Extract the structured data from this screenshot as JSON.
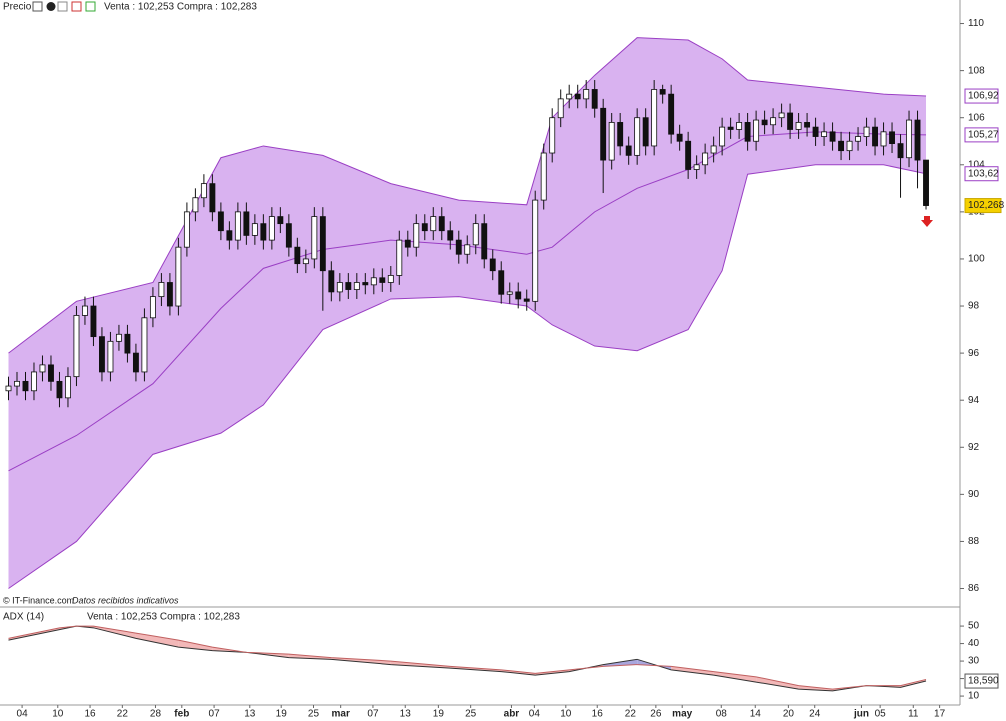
{
  "header": {
    "title": "Precio",
    "quote": "Venta : 102,253 Compra : 102,283"
  },
  "footer": {
    "source": "© IT-Finance.com",
    "note": "Datos recibidos indicativos"
  },
  "chart_data": [
    {
      "type": "candlestick",
      "xlim": [
        -1,
        112
      ],
      "ylim": [
        85.3,
        111
      ],
      "yticks": [
        86,
        88,
        90,
        92,
        94,
        96,
        98,
        100,
        102,
        104,
        106,
        108,
        110
      ],
      "up_color": "#ffffff",
      "down_color": "#111111",
      "open": [
        94.4,
        94.6,
        94.8,
        94.4,
        95.2,
        95.5,
        94.8,
        94.1,
        95.0,
        97.6,
        98.0,
        96.7,
        95.2,
        96.5,
        96.8,
        96.0,
        95.2,
        97.5,
        98.4,
        99.0,
        98.0,
        100.5,
        102.0,
        102.6,
        103.2,
        102.0,
        101.2,
        100.8,
        102.0,
        101.0,
        101.5,
        100.8,
        101.8,
        101.5,
        100.5,
        99.8,
        100.0,
        101.8,
        99.5,
        98.6,
        99.0,
        98.7,
        99.0,
        98.9,
        99.2,
        99.0,
        99.3,
        100.8,
        100.5,
        101.5,
        101.2,
        101.8,
        101.2,
        100.8,
        100.2,
        100.6,
        101.5,
        100.0,
        99.5,
        98.5,
        98.6,
        98.3,
        98.2,
        102.5,
        104.5,
        106.0,
        106.8,
        107.0,
        106.8,
        107.2,
        106.4,
        104.2,
        105.8,
        104.8,
        104.4,
        106.0,
        104.8,
        107.2,
        107.0,
        105.3,
        105.0,
        103.8,
        104.0,
        104.5,
        104.8,
        105.6,
        105.5,
        105.8,
        105.0,
        105.9,
        105.7,
        106.0,
        106.2,
        105.5,
        105.8,
        105.6,
        105.2,
        105.4,
        105.0,
        104.6,
        105.0,
        105.2,
        105.6,
        104.8,
        105.4,
        104.9,
        104.3,
        105.9,
        104.2
      ],
      "high": [
        95.0,
        95.2,
        95.2,
        95.6,
        95.9,
        95.9,
        95.2,
        95.4,
        98.0,
        98.4,
        98.4,
        97.1,
        96.9,
        97.2,
        97.2,
        96.4,
        97.9,
        98.8,
        99.4,
        99.4,
        100.9,
        102.4,
        103.0,
        103.6,
        103.6,
        102.4,
        101.6,
        102.4,
        102.4,
        101.9,
        101.9,
        102.2,
        102.2,
        101.9,
        100.9,
        100.4,
        102.2,
        102.2,
        99.9,
        99.4,
        99.4,
        99.4,
        99.4,
        99.6,
        99.6,
        99.7,
        101.2,
        101.2,
        101.9,
        101.9,
        102.2,
        102.2,
        101.6,
        101.2,
        101.0,
        101.9,
        101.9,
        100.4,
        99.9,
        99.0,
        99.0,
        98.7,
        102.9,
        104.9,
        106.4,
        107.2,
        107.4,
        107.4,
        107.6,
        107.6,
        106.8,
        106.2,
        106.2,
        105.2,
        106.4,
        106.4,
        107.6,
        107.4,
        107.4,
        105.7,
        105.4,
        104.4,
        104.9,
        105.2,
        106.0,
        106.0,
        106.2,
        106.2,
        106.3,
        106.3,
        106.4,
        106.6,
        106.6,
        106.2,
        106.2,
        106.0,
        105.8,
        105.8,
        105.4,
        105.4,
        105.6,
        106.0,
        106.0,
        105.8,
        105.8,
        105.3,
        106.3,
        106.3,
        104.2
      ],
      "low": [
        94.0,
        94.2,
        94.0,
        94.0,
        94.8,
        94.4,
        93.7,
        93.7,
        94.6,
        97.2,
        96.3,
        94.8,
        94.8,
        96.1,
        95.6,
        94.8,
        94.8,
        97.1,
        98.0,
        97.6,
        97.6,
        100.1,
        101.6,
        102.2,
        101.6,
        100.8,
        100.4,
        100.4,
        100.6,
        100.6,
        100.4,
        100.4,
        101.1,
        100.1,
        99.4,
        99.4,
        99.6,
        97.8,
        98.2,
        98.2,
        98.3,
        98.3,
        98.5,
        98.5,
        98.6,
        98.6,
        98.9,
        100.1,
        100.1,
        100.8,
        100.8,
        100.8,
        100.4,
        99.8,
        99.8,
        100.2,
        99.6,
        99.1,
        98.1,
        98.1,
        97.9,
        97.8,
        97.8,
        102.1,
        104.1,
        105.6,
        106.4,
        106.4,
        106.4,
        106.0,
        102.8,
        103.8,
        104.4,
        104.0,
        104.0,
        104.4,
        104.4,
        106.6,
        104.9,
        104.6,
        103.4,
        103.4,
        103.6,
        104.1,
        104.4,
        105.1,
        105.1,
        104.6,
        104.6,
        105.3,
        105.3,
        105.6,
        105.1,
        105.1,
        105.2,
        104.8,
        104.8,
        104.6,
        104.2,
        104.2,
        104.6,
        104.8,
        104.4,
        104.4,
        104.5,
        102.6,
        103.9,
        103.0,
        102.1
      ],
      "close": [
        94.6,
        94.8,
        94.4,
        95.2,
        95.5,
        94.8,
        94.1,
        95.0,
        97.6,
        98.0,
        96.7,
        95.2,
        96.5,
        96.8,
        96.0,
        95.2,
        97.5,
        98.4,
        99.0,
        98.0,
        100.5,
        102.0,
        102.6,
        103.2,
        102.0,
        101.2,
        100.8,
        102.0,
        101.0,
        101.5,
        100.8,
        101.8,
        101.5,
        100.5,
        99.8,
        100.0,
        101.8,
        99.5,
        98.6,
        99.0,
        98.7,
        99.0,
        98.9,
        99.2,
        99.0,
        99.3,
        100.8,
        100.5,
        101.5,
        101.2,
        101.8,
        101.2,
        100.8,
        100.2,
        100.6,
        101.5,
        100.0,
        99.5,
        98.5,
        98.6,
        98.3,
        98.2,
        102.5,
        104.5,
        106.0,
        106.8,
        107.0,
        106.8,
        107.2,
        106.4,
        104.2,
        105.8,
        104.8,
        104.4,
        106.0,
        104.8,
        107.2,
        107.0,
        105.3,
        105.0,
        103.8,
        104.0,
        104.5,
        104.8,
        105.6,
        105.5,
        105.8,
        105.0,
        105.9,
        105.7,
        106.0,
        106.2,
        105.5,
        105.8,
        105.6,
        105.2,
        105.4,
        105.0,
        104.6,
        105.0,
        105.2,
        105.6,
        104.8,
        105.4,
        104.9,
        104.3,
        105.9,
        104.2,
        102.268
      ],
      "last_label": "102,268",
      "band": {
        "color": "#9a3fc4",
        "fill": "#d9b2f0",
        "x": [
          0,
          8,
          17,
          25,
          30,
          37,
          45,
          53,
          61,
          64,
          69,
          74,
          80,
          84,
          87,
          95,
          103,
          108
        ],
        "upper": [
          96.0,
          98.2,
          99.0,
          104.3,
          104.8,
          104.4,
          103.2,
          102.5,
          102.3,
          106.0,
          107.8,
          109.4,
          109.3,
          108.5,
          107.6,
          107.3,
          107.0,
          106.92
        ],
        "middle": [
          91.0,
          92.5,
          94.7,
          97.9,
          99.6,
          100.4,
          100.8,
          100.6,
          100.2,
          100.5,
          102.0,
          103.0,
          103.8,
          104.6,
          105.2,
          105.4,
          105.3,
          105.27
        ],
        "lower": [
          86.0,
          88.0,
          91.7,
          92.6,
          93.8,
          97.0,
          98.3,
          98.4,
          98.0,
          97.2,
          96.3,
          96.1,
          97.0,
          99.5,
          103.6,
          104.0,
          104.0,
          103.62
        ],
        "upper_label": "106,92",
        "middle_label": "105,27",
        "lower_label": "103,62"
      }
    },
    {
      "type": "line",
      "title": "ADX (14)",
      "quote": "Venta : 102,253 Compra : 102,283",
      "xlim": [
        -1,
        112
      ],
      "ylim": [
        4.9,
        60.9
      ],
      "yticks": [
        10,
        20,
        30,
        40,
        50
      ],
      "x": [
        0,
        3,
        6,
        8,
        10,
        15,
        20,
        24,
        28,
        33,
        38,
        45,
        52,
        58,
        62,
        66,
        70,
        74,
        78,
        83,
        88,
        93,
        97,
        101,
        105,
        108
      ],
      "series": [
        {
          "color": "#333333",
          "values": [
            42,
            45,
            48,
            50,
            49,
            43,
            38,
            36,
            35,
            32,
            31,
            28,
            26,
            24,
            22,
            24,
            28,
            31,
            25,
            22,
            18,
            14,
            13,
            16,
            15,
            18.59
          ]
        },
        {
          "color": "#c06060",
          "values": [
            43,
            46,
            49,
            50,
            50,
            46,
            42,
            38,
            35,
            34,
            32,
            30,
            27,
            25,
            23,
            25,
            27,
            28,
            27,
            24,
            21,
            16,
            14,
            16,
            16,
            19.5
          ]
        }
      ],
      "fill_colors": [
        "#f2b8b8",
        "#a9a6dd"
      ],
      "last_label": "18,590",
      "xticks": [
        {
          "value": 1.6,
          "label": "04"
        },
        {
          "value": 5.8,
          "label": "10"
        },
        {
          "value": 9.6,
          "label": "16"
        },
        {
          "value": 13.4,
          "label": "22"
        },
        {
          "value": 17.3,
          "label": "28"
        },
        {
          "value": 20.4,
          "label": "feb"
        },
        {
          "value": 24.2,
          "label": "07"
        },
        {
          "value": 28.4,
          "label": "13"
        },
        {
          "value": 32.1,
          "label": "19"
        },
        {
          "value": 35.9,
          "label": "25"
        },
        {
          "value": 39.1,
          "label": "mar"
        },
        {
          "value": 42.9,
          "label": "07"
        },
        {
          "value": 46.7,
          "label": "13"
        },
        {
          "value": 50.6,
          "label": "19"
        },
        {
          "value": 54.4,
          "label": "25"
        },
        {
          "value": 59.2,
          "label": "abr"
        },
        {
          "value": 61.9,
          "label": "04"
        },
        {
          "value": 65.6,
          "label": "10"
        },
        {
          "value": 69.3,
          "label": "16"
        },
        {
          "value": 73.2,
          "label": "22"
        },
        {
          "value": 76.2,
          "label": "26"
        },
        {
          "value": 79.3,
          "label": "may"
        },
        {
          "value": 83.9,
          "label": "08"
        },
        {
          "value": 87.9,
          "label": "14"
        },
        {
          "value": 91.8,
          "label": "20"
        },
        {
          "value": 94.9,
          "label": "24"
        },
        {
          "value": 100.4,
          "label": "jun"
        },
        {
          "value": 102.6,
          "label": "05"
        },
        {
          "value": 106.5,
          "label": "11"
        },
        {
          "value": 109.6,
          "label": "17"
        }
      ]
    }
  ]
}
